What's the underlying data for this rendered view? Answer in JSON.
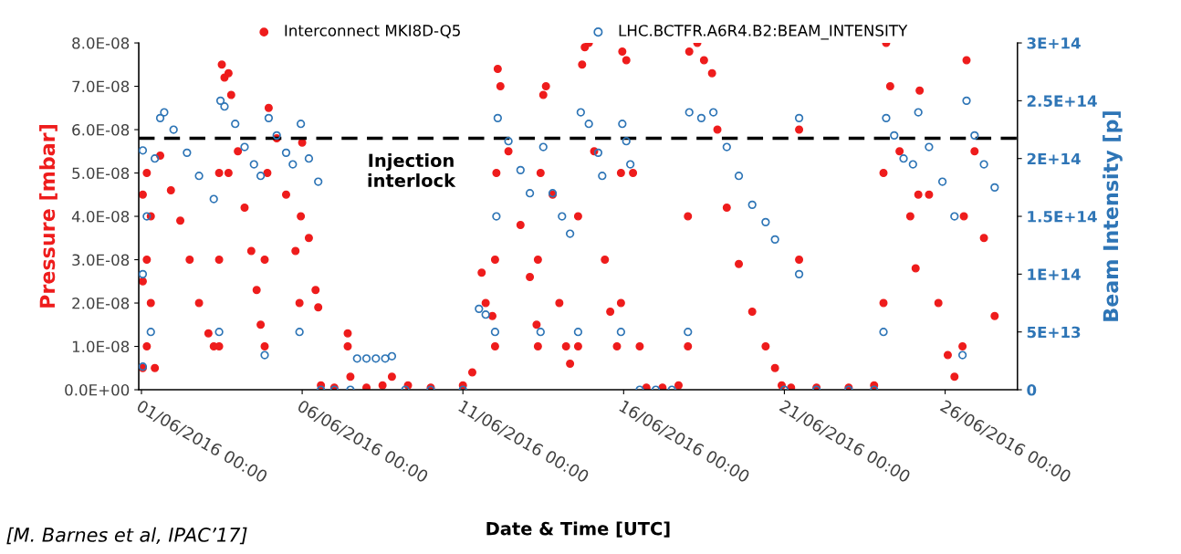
{
  "chart_data": {
    "type": "scatter",
    "xlabel": "Date & Time [UTC]",
    "ylabel": "Pressure [mbar]",
    "y2label": "Beam Intensity [p]",
    "annotations": [
      "[M. Barnes et al, IPAC’17]"
    ],
    "xlim": [
      "2016-05-31T22:00",
      "2016-06-28T06:00"
    ],
    "xticks": [
      {
        "value": "2016-06-01T00:00",
        "label": "01/06/2016 00:00"
      },
      {
        "value": "2016-06-06T00:00",
        "label": "06/06/2016 00:00"
      },
      {
        "value": "2016-06-11T00:00",
        "label": "11/06/2016 00:00"
      },
      {
        "value": "2016-06-16T00:00",
        "label": "16/06/2016 00:00"
      },
      {
        "value": "2016-06-21T00:00",
        "label": "21/06/2016 00:00"
      },
      {
        "value": "2016-06-26T00:00",
        "label": "26/06/2016 00:00"
      }
    ],
    "ylim": [
      0,
      8e-08
    ],
    "yticks": [
      {
        "value": 0,
        "label": "0.0E+00"
      },
      {
        "value": 1e-08,
        "label": "1.0E-08"
      },
      {
        "value": 2e-08,
        "label": "2.0E-08"
      },
      {
        "value": 3e-08,
        "label": "3.0E-08"
      },
      {
        "value": 4e-08,
        "label": "4.0E-08"
      },
      {
        "value": 5e-08,
        "label": "5.0E-08"
      },
      {
        "value": 6e-08,
        "label": "6.0E-08"
      },
      {
        "value": 7e-08,
        "label": "7.0E-08"
      },
      {
        "value": 8e-08,
        "label": "8.0E-08"
      }
    ],
    "y2lim": [
      0,
      300000000000000.0
    ],
    "y2ticks": [
      0,
      {
        "value": 50000000000000.0,
        "label": "5E+13"
      },
      {
        "value": 100000000000000.0,
        "label": "1E+14"
      },
      {
        "value": 150000000000000.0,
        "label": "1.5E+14"
      },
      {
        "value": 200000000000000.0,
        "label": "2E+14"
      },
      {
        "value": 250000000000000.0,
        "label": "2.5E+14"
      },
      {
        "value": 300000000000000.0,
        "label": "3E+14"
      }
    ],
    "marker": "circle",
    "legend": "top",
    "grid": false,
    "ref_lines": [
      {
        "axis": "y",
        "value": 5.8e-08,
        "label": "Injection interlock",
        "color": "#000000",
        "line_style": "dashed"
      }
    ],
    "series": [
      {
        "name": "Interconnect MKI8D-Q5",
        "color": "#ee1c1c",
        "x": [
          "2016-06-01T01:00",
          "2016-06-01T01:00",
          "2016-06-01T01:00",
          "2016-06-01T04:00",
          "2016-06-01T04:00",
          "2016-06-01T04:00",
          "2016-06-01T07:00",
          "2016-06-01T07:00",
          "2016-06-01T10:00",
          "2016-06-01T14:00",
          "2016-06-01T22:00",
          "2016-06-02T05:00",
          "2016-06-02T12:00",
          "2016-06-02T19:00",
          "2016-06-03T02:00",
          "2016-06-03T06:00",
          "2016-06-03T10:00",
          "2016-06-03T10:00",
          "2016-06-03T10:00",
          "2016-06-03T12:00",
          "2016-06-03T14:00",
          "2016-06-03T17:00",
          "2016-06-03T17:00",
          "2016-06-03T19:00",
          "2016-06-04T00:00",
          "2016-06-04T05:00",
          "2016-06-04T10:00",
          "2016-06-04T14:00",
          "2016-06-04T17:00",
          "2016-06-04T20:00",
          "2016-06-04T20:00",
          "2016-06-04T22:00",
          "2016-06-04T23:00",
          "2016-06-05T05:00",
          "2016-06-05T12:00",
          "2016-06-05T19:00",
          "2016-06-05T22:00",
          "2016-06-05T23:00",
          "2016-06-06T00:00",
          "2016-06-06T05:00",
          "2016-06-06T10:00",
          "2016-06-06T12:00",
          "2016-06-06T14:00",
          "2016-06-07T00:00",
          "2016-06-07T10:00",
          "2016-06-07T10:00",
          "2016-06-07T12:00",
          "2016-06-08T00:00",
          "2016-06-08T12:00",
          "2016-06-08T19:00",
          "2016-06-09T07:00",
          "2016-06-10T00:00",
          "2016-06-11T00:00",
          "2016-06-11T07:00",
          "2016-06-11T14:00",
          "2016-06-11T17:00",
          "2016-06-11T22:00",
          "2016-06-12T00:00",
          "2016-06-12T00:00",
          "2016-06-12T01:00",
          "2016-06-12T02:00",
          "2016-06-12T04:00",
          "2016-06-12T10:00",
          "2016-06-12T19:00",
          "2016-06-13T02:00",
          "2016-06-13T07:00",
          "2016-06-13T08:00",
          "2016-06-13T08:00",
          "2016-06-13T10:00",
          "2016-06-13T12:00",
          "2016-06-13T14:00",
          "2016-06-13T19:00",
          "2016-06-14T00:00",
          "2016-06-14T05:00",
          "2016-06-14T08:00",
          "2016-06-14T14:00",
          "2016-06-14T14:00",
          "2016-06-14T17:00",
          "2016-06-14T19:00",
          "2016-06-14T22:00",
          "2016-06-15T02:00",
          "2016-06-15T10:00",
          "2016-06-15T14:00",
          "2016-06-15T19:00",
          "2016-06-15T22:00",
          "2016-06-15T22:00",
          "2016-06-15T23:00",
          "2016-06-16T02:00",
          "2016-06-16T07:00",
          "2016-06-16T12:00",
          "2016-06-16T17:00",
          "2016-06-17T05:00",
          "2016-06-17T17:00",
          "2016-06-18T00:00",
          "2016-06-18T00:00",
          "2016-06-18T01:00",
          "2016-06-18T07:00",
          "2016-06-18T12:00",
          "2016-06-18T18:00",
          "2016-06-18T22:00",
          "2016-06-19T05:00",
          "2016-06-19T14:00",
          "2016-06-20T00:00",
          "2016-06-20T10:00",
          "2016-06-20T17:00",
          "2016-06-20T22:00",
          "2016-06-21T05:00",
          "2016-06-21T11:00",
          "2016-06-21T11:00",
          "2016-06-22T00:00",
          "2016-06-23T00:00",
          "2016-06-23T19:00",
          "2016-06-24T02:00",
          "2016-06-24T02:00",
          "2016-06-24T04:00",
          "2016-06-24T07:00",
          "2016-06-24T14:00",
          "2016-06-24T22:00",
          "2016-06-25T02:00",
          "2016-06-25T04:00",
          "2016-06-25T05:00",
          "2016-06-25T12:00",
          "2016-06-25T19:00",
          "2016-06-26T02:00",
          "2016-06-26T07:00",
          "2016-06-26T13:00",
          "2016-06-26T14:00",
          "2016-06-26T16:00",
          "2016-06-26T22:00",
          "2016-06-27T05:00",
          "2016-06-27T13:00"
        ],
        "values": [
          5e-09,
          2.5e-08,
          4.5e-08,
          1e-08,
          3e-08,
          5e-08,
          2e-08,
          4e-08,
          5e-09,
          5.4e-08,
          4.6e-08,
          3.9e-08,
          3e-08,
          2e-08,
          1.3e-08,
          1e-08,
          1e-08,
          3e-08,
          5e-08,
          7.5e-08,
          7.2e-08,
          7.3e-08,
          5e-08,
          6.8e-08,
          5.5e-08,
          4.2e-08,
          3.2e-08,
          2.3e-08,
          1.5e-08,
          1e-08,
          3e-08,
          5e-08,
          6.5e-08,
          5.8e-08,
          4.5e-08,
          3.2e-08,
          2e-08,
          4e-08,
          5.7e-08,
          3.5e-08,
          2.3e-08,
          1.9e-08,
          1e-09,
          5e-10,
          1.3e-08,
          1e-08,
          3e-09,
          5e-10,
          1e-09,
          3e-09,
          1e-09,
          5e-10,
          1e-09,
          4e-09,
          2.7e-08,
          2e-08,
          1.7e-08,
          1e-08,
          3e-08,
          5e-08,
          7.4e-08,
          7e-08,
          5.5e-08,
          3.8e-08,
          2.6e-08,
          1.5e-08,
          1e-08,
          3e-08,
          5e-08,
          6.8e-08,
          7e-08,
          4.5e-08,
          2e-08,
          1e-08,
          6e-09,
          1e-08,
          4e-08,
          7.5e-08,
          7.9e-08,
          8e-08,
          5.5e-08,
          3e-08,
          1.8e-08,
          1e-08,
          2e-08,
          5e-08,
          7.8e-08,
          7.6e-08,
          5e-08,
          1e-08,
          5e-10,
          5e-10,
          1e-09,
          1e-08,
          4e-08,
          7.8e-08,
          8e-08,
          7.6e-08,
          7.3e-08,
          6e-08,
          4.2e-08,
          2.9e-08,
          1.8e-08,
          1e-08,
          5e-09,
          1e-09,
          5e-10,
          3e-08,
          6e-08,
          5e-10,
          5e-10,
          1e-09,
          2e-08,
          5e-08,
          8e-08,
          7e-08,
          5.5e-08,
          4e-08,
          2.8e-08,
          4.5e-08,
          6.9e-08,
          4.5e-08,
          2e-08,
          8e-09,
          3e-09,
          1e-08,
          4e-08,
          7.6e-08,
          5.5e-08,
          3.5e-08,
          1.7e-08
        ]
      },
      {
        "name": "LHC.BCTFR.A6R4.B2:BEAM_INTENSITY",
        "color": "#2e75b6",
        "axis": "y2",
        "x": [
          "2016-06-01T01:00",
          "2016-06-01T01:00",
          "2016-06-01T01:00",
          "2016-06-01T04:00",
          "2016-06-01T07:00",
          "2016-06-01T10:00",
          "2016-06-01T14:00",
          "2016-06-01T17:00",
          "2016-06-02T00:00",
          "2016-06-02T10:00",
          "2016-06-02T19:00",
          "2016-06-03T06:00",
          "2016-06-03T10:00",
          "2016-06-03T11:00",
          "2016-06-03T14:00",
          "2016-06-03T22:00",
          "2016-06-04T05:00",
          "2016-06-04T12:00",
          "2016-06-04T17:00",
          "2016-06-04T20:00",
          "2016-06-04T23:00",
          "2016-06-05T05:00",
          "2016-06-05T12:00",
          "2016-06-05T17:00",
          "2016-06-05T22:00",
          "2016-06-05T23:00",
          "2016-06-06T05:00",
          "2016-06-06T12:00",
          "2016-06-06T14:00",
          "2016-06-07T00:00",
          "2016-06-07T12:00",
          "2016-06-07T17:00",
          "2016-06-08T00:00",
          "2016-06-08T07:00",
          "2016-06-08T14:00",
          "2016-06-08T19:00",
          "2016-06-09T05:00",
          "2016-06-10T00:00",
          "2016-06-11T00:00",
          "2016-06-11T12:00",
          "2016-06-11T17:00",
          "2016-06-12T00:00",
          "2016-06-12T01:00",
          "2016-06-12T02:00",
          "2016-06-12T10:00",
          "2016-06-12T19:00",
          "2016-06-13T02:00",
          "2016-06-13T10:00",
          "2016-06-13T12:00",
          "2016-06-13T19:00",
          "2016-06-14T02:00",
          "2016-06-14T08:00",
          "2016-06-14T14:00",
          "2016-06-14T16:00",
          "2016-06-14T22:00",
          "2016-06-15T05:00",
          "2016-06-15T08:00",
          "2016-06-15T22:00",
          "2016-06-15T23:00",
          "2016-06-16T02:00",
          "2016-06-16T05:00",
          "2016-06-16T12:00",
          "2016-06-17T00:00",
          "2016-06-17T12:00",
          "2016-06-18T00:00",
          "2016-06-18T01:00",
          "2016-06-18T10:00",
          "2016-06-18T19:00",
          "2016-06-19T05:00",
          "2016-06-19T14:00",
          "2016-06-20T00:00",
          "2016-06-20T10:00",
          "2016-06-20T17:00",
          "2016-06-21T00:00",
          "2016-06-21T11:00",
          "2016-06-21T11:00",
          "2016-06-22T00:00",
          "2016-06-23T00:00",
          "2016-06-23T19:00",
          "2016-06-24T02:00",
          "2016-06-24T04:00",
          "2016-06-24T10:00",
          "2016-06-24T17:00",
          "2016-06-25T00:00",
          "2016-06-25T04:00",
          "2016-06-25T12:00",
          "2016-06-25T22:00",
          "2016-06-26T07:00",
          "2016-06-26T13:00",
          "2016-06-26T16:00",
          "2016-06-26T22:00",
          "2016-06-27T05:00",
          "2016-06-27T13:00"
        ],
        "values": [
          20000000000000.0,
          100000000000000.0,
          207000000000000.0,
          150000000000000.0,
          50000000000000.0,
          200000000000000.0,
          235000000000000.0,
          240000000000000.0,
          225000000000000.0,
          205000000000000.0,
          185000000000000.0,
          165000000000000.0,
          50000000000000.0,
          250000000000000.0,
          245000000000000.0,
          230000000000000.0,
          210000000000000.0,
          195000000000000.0,
          185000000000000.0,
          30000000000000.0,
          235000000000000.0,
          220000000000000.0,
          205000000000000.0,
          195000000000000.0,
          50000000000000.0,
          230000000000000.0,
          200000000000000.0,
          180000000000000.0,
          0,
          0,
          0,
          27000000000000.0,
          27000000000000.0,
          27000000000000.0,
          27000000000000.0,
          29000000000000.0,
          0,
          0,
          0,
          70000000000000.0,
          65000000000000.0,
          50000000000000.0,
          150000000000000.0,
          235000000000000.0,
          215000000000000.0,
          190000000000000.0,
          170000000000000.0,
          50000000000000.0,
          210000000000000.0,
          170000000000000.0,
          150000000000000.0,
          135000000000000.0,
          50000000000000.0,
          240000000000000.0,
          230000000000000.0,
          205000000000000.0,
          185000000000000.0,
          50000000000000.0,
          230000000000000.0,
          215000000000000.0,
          195000000000000.0,
          0,
          0,
          0,
          50000000000000.0,
          240000000000000.0,
          235000000000000.0,
          240000000000000.0,
          210000000000000.0,
          185000000000000.0,
          160000000000000.0,
          145000000000000.0,
          130000000000000.0,
          0,
          100000000000000.0,
          235000000000000.0,
          0,
          0,
          0,
          50000000000000.0,
          235000000000000.0,
          220000000000000.0,
          200000000000000.0,
          195000000000000.0,
          240000000000000.0,
          210000000000000.0,
          180000000000000.0,
          150000000000000.0,
          30000000000000.0,
          250000000000000.0,
          220000000000000.0,
          195000000000000.0,
          175000000000000.0
        ]
      }
    ]
  }
}
